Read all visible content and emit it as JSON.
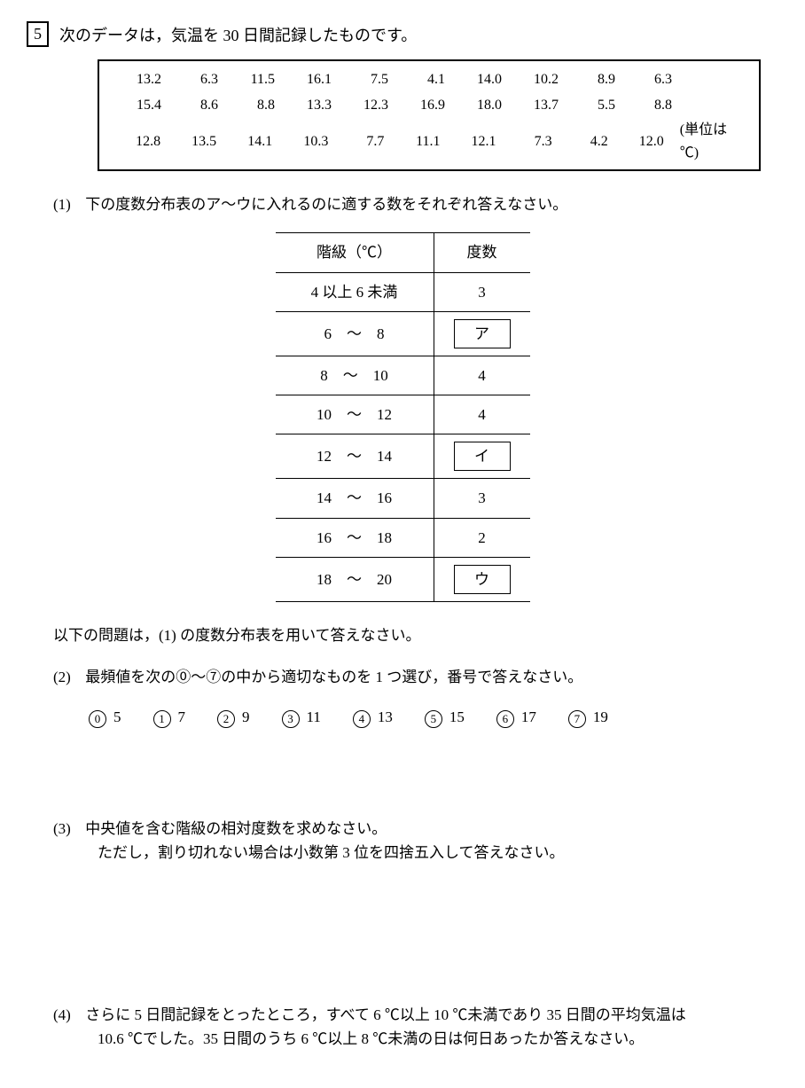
{
  "header": {
    "question_number": "5",
    "intro": "次のデータは，気温を 30 日間記録したものです。"
  },
  "data_table": {
    "rows": [
      [
        "13.2",
        "6.3",
        "11.5",
        "16.1",
        "7.5",
        "4.1",
        "14.0",
        "10.2",
        "8.9",
        "6.3"
      ],
      [
        "15.4",
        "8.6",
        "8.8",
        "13.3",
        "12.3",
        "16.9",
        "18.0",
        "13.7",
        "5.5",
        "8.8"
      ],
      [
        "12.8",
        "13.5",
        "14.1",
        "10.3",
        "7.7",
        "11.1",
        "12.1",
        "7.3",
        "4.2",
        "12.0"
      ]
    ],
    "unit": "(単位は ℃)"
  },
  "subq1": {
    "label": "(1)",
    "text": "下の度数分布表のア〜ウに入れるのに適する数をそれぞれ答えなさい。"
  },
  "freq_table": {
    "col1_header": "階級（℃）",
    "col2_header": "度数",
    "rows": [
      {
        "class": "4 以上 6 未満",
        "freq": "3",
        "boxed": false
      },
      {
        "class": "6　〜　8",
        "freq": "ア",
        "boxed": true
      },
      {
        "class": "8　〜　10",
        "freq": "4",
        "boxed": false
      },
      {
        "class": "10　〜　12",
        "freq": "4",
        "boxed": false
      },
      {
        "class": "12　〜　14",
        "freq": "イ",
        "boxed": true
      },
      {
        "class": "14　〜　16",
        "freq": "3",
        "boxed": false
      },
      {
        "class": "16　〜　18",
        "freq": "2",
        "boxed": false
      },
      {
        "class": "18　〜　20",
        "freq": "ウ",
        "boxed": true
      }
    ]
  },
  "instruction": "以下の問題は，(1) の度数分布表を用いて答えなさい。",
  "subq2": {
    "label": "(2)",
    "text": "最頻値を次の⓪〜⑦の中から適切なものを 1 つ選び，番号で答えなさい。",
    "choices": [
      {
        "num": "0",
        "val": "5"
      },
      {
        "num": "1",
        "val": "7"
      },
      {
        "num": "2",
        "val": "9"
      },
      {
        "num": "3",
        "val": "11"
      },
      {
        "num": "4",
        "val": "13"
      },
      {
        "num": "5",
        "val": "15"
      },
      {
        "num": "6",
        "val": "17"
      },
      {
        "num": "7",
        "val": "19"
      }
    ]
  },
  "subq3": {
    "label": "(3)",
    "line1": "中央値を含む階級の相対度数を求めなさい。",
    "line2": "ただし，割り切れない場合は小数第 3 位を四捨五入して答えなさい。"
  },
  "subq4": {
    "label": "(4)",
    "line1": "さらに 5 日間記録をとったところ，すべて 6 ℃以上 10 ℃未満であり 35 日間の平均気温は",
    "line2": "10.6 ℃でした。35 日間のうち 6 ℃以上 8 ℃未満の日は何日あったか答えなさい。"
  }
}
